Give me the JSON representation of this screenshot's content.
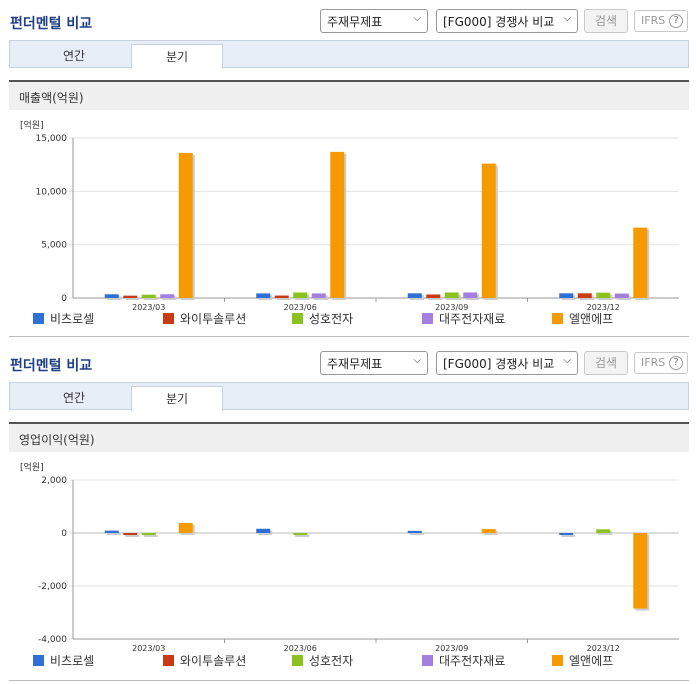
{
  "panels": [
    {
      "title": "펀더멘털 비교",
      "select1": "주재무제표",
      "select2": "[FG000] 경쟁사 비교",
      "search_label": "검색",
      "ifrs_label": "IFRS",
      "tabs": [
        "연간",
        "분기"
      ],
      "section_title": "매출액(억원)"
    },
    {
      "title": "펀더멘털 비교",
      "select1": "주재무제표",
      "select2": "[FG000] 경쟁사 비교",
      "search_label": "검색",
      "ifrs_label": "IFRS",
      "tabs": [
        "연간",
        "분기"
      ],
      "section_title": "영업이익(억원)"
    }
  ],
  "series_colors": [
    "#2f6fd6",
    "#c83a12",
    "#8cc21d",
    "#a37fe0",
    "#f59b00"
  ],
  "chart_data": [
    {
      "type": "bar",
      "unit_label": "[억원]",
      "categories": [
        "2023/03",
        "2023/06",
        "2023/09",
        "2023/12"
      ],
      "ylim": [
        0,
        15000
      ],
      "yticks": [
        0,
        5000,
        10000,
        15000
      ],
      "ytick_labels": [
        "0",
        "5,000",
        "10,000",
        "15,000"
      ],
      "series": [
        {
          "name": "비츠로셀",
          "values": [
            350,
            430,
            440,
            440
          ]
        },
        {
          "name": "와이투솔루션",
          "values": [
            220,
            230,
            330,
            440
          ]
        },
        {
          "name": "성호전자",
          "values": [
            310,
            520,
            520,
            500
          ]
        },
        {
          "name": "대주전자재료",
          "values": [
            350,
            430,
            520,
            420
          ]
        },
        {
          "name": "엘앤에프",
          "values": [
            13600,
            13700,
            12600,
            6600
          ]
        }
      ]
    },
    {
      "type": "bar",
      "unit_label": "[억원]",
      "categories": [
        "2023/03",
        "2023/06",
        "2023/09",
        "2023/12"
      ],
      "ylim": [
        -4000,
        2000
      ],
      "yticks": [
        -4000,
        -2000,
        0,
        2000
      ],
      "ytick_labels": [
        "-4,000",
        "-2,000",
        "0",
        "2,000"
      ],
      "series": [
        {
          "name": "비츠로셀",
          "values": [
            90,
            160,
            80,
            -60
          ]
        },
        {
          "name": "와이투솔루션",
          "values": [
            -60,
            0,
            0,
            0
          ]
        },
        {
          "name": "성호전자",
          "values": [
            -50,
            -70,
            0,
            140
          ]
        },
        {
          "name": "대주전자재료",
          "values": [
            0,
            0,
            0,
            0
          ]
        },
        {
          "name": "엘앤에프",
          "values": [
            380,
            0,
            150,
            -2850
          ]
        }
      ]
    }
  ]
}
